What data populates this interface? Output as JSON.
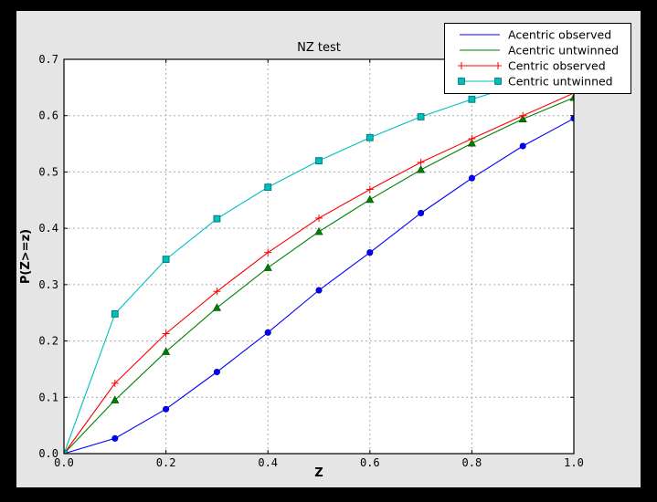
{
  "window": {
    "outer_bg": "#000000",
    "figure_bg": "#e5e5e5",
    "plot_bg": "#ffffff",
    "frame_color": "#000000",
    "grid_color": "#aaaaaa",
    "tick_label_color": "#000000"
  },
  "chart_data": {
    "type": "line",
    "title": "NZ test",
    "xlabel": "Z",
    "ylabel": "P(Z>=z)",
    "xlim": [
      0.0,
      1.0
    ],
    "ylim": [
      0.0,
      0.7
    ],
    "grid": true,
    "legend_position": "upper right (overlapping plot top-right corner)",
    "xticks": {
      "values": [
        0.0,
        0.2,
        0.4,
        0.6,
        0.8,
        1.0
      ],
      "labels": [
        "0.0",
        "0.2",
        "0.4",
        "0.6",
        "0.8",
        "1.0"
      ]
    },
    "yticks": {
      "values": [
        0.0,
        0.1,
        0.2,
        0.3,
        0.4,
        0.5,
        0.6,
        0.7
      ],
      "labels": [
        "0.0",
        "0.1",
        "0.2",
        "0.3",
        "0.4",
        "0.5",
        "0.6",
        "0.7"
      ]
    },
    "x": [
      0.0,
      0.1,
      0.2,
      0.3,
      0.4,
      0.5,
      0.6,
      0.7,
      0.8,
      0.9,
      1.0
    ],
    "series": [
      {
        "name": "Acentric observed",
        "color": "#0000ff",
        "marker": "circle",
        "marker_edge": "#0000bb",
        "legend_points": 0,
        "values": [
          0.0,
          0.027,
          0.079,
          0.145,
          0.215,
          0.29,
          0.357,
          0.427,
          0.489,
          0.546,
          0.595
        ]
      },
      {
        "name": "Acentric untwinned",
        "color": "#007f00",
        "marker": "triangle",
        "marker_edge": "#005500",
        "legend_points": 0,
        "values": [
          0.0,
          0.095,
          0.181,
          0.259,
          0.33,
          0.394,
          0.451,
          0.504,
          0.551,
          0.594,
          0.632
        ]
      },
      {
        "name": "Centric observed",
        "color": "#ff0000",
        "marker": "plus",
        "marker_edge": "#ff0000",
        "legend_points": 2,
        "values": [
          0.0,
          0.125,
          0.213,
          0.288,
          0.357,
          0.418,
          0.469,
          0.517,
          0.559,
          0.6,
          0.64
        ]
      },
      {
        "name": "Centric untwinned",
        "color": "#00bfbf",
        "marker": "square",
        "marker_edge": "#007d7d",
        "legend_points": 2,
        "values": [
          0.0,
          0.248,
          0.345,
          0.417,
          0.473,
          0.52,
          0.561,
          0.598,
          0.629,
          0.657,
          0.683
        ]
      }
    ]
  }
}
